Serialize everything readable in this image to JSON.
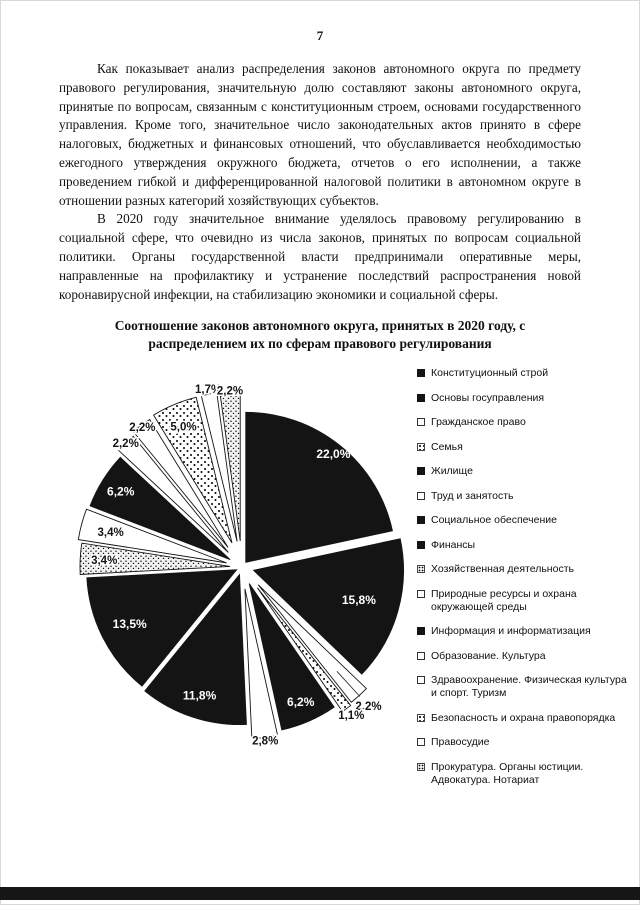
{
  "page": {
    "number": "7"
  },
  "paragraphs": {
    "p1": "Как показывает анализ распределения законов автономного округа по предмету правового регулирования, значительную долю составляют законы автономного округа, принятые по вопросам, связанным с конституционным строем, основами государственного управления. Кроме того, значительное число законодательных актов принято в сфере налоговых, бюджетных и финансовых отношений, что обуславливается необходимостью ежегодного утверждения окружного бюджета, отчетов о его исполнении, а также проведением гибкой и дифференцированной налоговой политики в автономном округе в отношении разных категорий хозяйствующих субъектов.",
    "p2": "В 2020 году значительное внимание уделялось правовому регулированию в социальной сфере, что очевидно из числа законов, принятых по вопросам социальной политики. Органы государственной власти предпринимали оперативные меры, направленные на профилактику и устранение последствий распространения новой коронавирусной инфекции, на стабилизацию экономики и социальной сферы."
  },
  "chart_title": "Соотношение законов автономного округа, принятых в 2020 году, с распределением их по сферам правового регулирования",
  "colors": {
    "ink": "#141414",
    "paper": "#ffffff"
  },
  "chart_data": {
    "type": "pie",
    "title": "Соотношение законов автономного округа, принятых в 2020 году, с распределением их по сферам правового регулирования",
    "unit": "%",
    "legend_position": "right",
    "slices": [
      {
        "label": "Конституционный строй",
        "value": 22.0,
        "pct_label": "22,0%",
        "fill": "black",
        "explode": 6,
        "label_pos": "inside",
        "label_frac": 0.93
      },
      {
        "label": "Основы госуправления",
        "value": 15.8,
        "pct_label": "15,8%",
        "fill": "black",
        "explode": 12,
        "label_pos": "inside",
        "label_frac": 0.73
      },
      {
        "label": "Гражданское право",
        "value": 2.2,
        "pct_label": "2,2%",
        "fill": "white",
        "explode": 24,
        "label_pos": "outside",
        "label_dist": 188
      },
      {
        "label": "Семья",
        "value": 1.1,
        "pct_label": "1,1%",
        "fill": "dots",
        "explode": 26,
        "label_pos": "outside",
        "label_dist": 184
      },
      {
        "label": "Жилище",
        "value": 6.2,
        "pct_label": "6,2%",
        "fill": "black",
        "explode": 18,
        "label_pos": "inside",
        "label_frac": 0.86
      },
      {
        "label": "Труд и занятость",
        "value": 2.8,
        "pct_label": "2,8%",
        "fill": "white",
        "explode": 22,
        "label_pos": "outside",
        "label_dist": 175
      },
      {
        "label": "Социальное обеспечение",
        "value": 11.8,
        "pct_label": "11,8%",
        "fill": "black",
        "explode": 8,
        "label_pos": "inside",
        "label_frac": 0.85
      },
      {
        "label": "Финансы",
        "value": 13.5,
        "pct_label": "13,5%",
        "fill": "black",
        "explode": 6,
        "label_pos": "inside",
        "label_frac": 0.8
      },
      {
        "label": "Хозяйственная деятельность",
        "value": 3.4,
        "pct_label": "3,4%",
        "fill": "speckle",
        "explode": 12,
        "label_pos": "outside",
        "label_dist": 138
      },
      {
        "label": "Природные ресурсы и охрана окружающей среды",
        "value": 3.4,
        "pct_label": "3,4%",
        "fill": "white",
        "explode": 16,
        "label_pos": "outside",
        "label_dist": 136
      },
      {
        "label": "Информация и информатизация",
        "value": 6.2,
        "pct_label": "6,2%",
        "fill": "black",
        "explode": 14,
        "label_pos": "inside",
        "label_frac": 0.86
      },
      {
        "label": "Образование. Культура",
        "value": 2.2,
        "pct_label": "2,2%",
        "fill": "white",
        "explode": 20,
        "label_pos": "outside",
        "label_dist": 170
      },
      {
        "label": "Здравоохранение. Физическая культура и спорт. Туризм",
        "value": 2.2,
        "pct_label": "2,2%",
        "fill": "white",
        "explode": 24,
        "label_pos": "outside",
        "label_dist": 172
      },
      {
        "label": "Безопасность и охрана правопорядка",
        "value": 5.0,
        "pct_label": "5,0%",
        "fill": "dots",
        "explode": 26,
        "label_pos": "outside",
        "label_dist": 152
      },
      {
        "label": "Правосудие",
        "value": 1.7,
        "pct_label": "1,7%",
        "fill": "white",
        "explode": 26,
        "label_pos": "outside",
        "label_dist": 181
      },
      {
        "label": "Прокуратура. Органы юстиции. Адвокатура. Нотариат",
        "value": 2.2,
        "pct_label": "2,2%",
        "fill": "speckle",
        "explode": 26,
        "label_pos": "outside",
        "label_dist": 177
      }
    ]
  }
}
